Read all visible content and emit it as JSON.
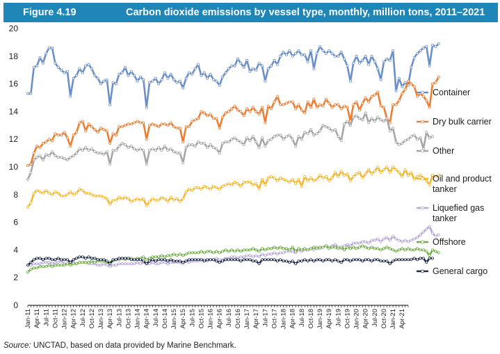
{
  "header": {
    "figure_label": "Figure 4.19",
    "title": "Carbon dioxide emissions by vessel type, monthly, million tons, 2011–2021"
  },
  "source": {
    "label": "Source:",
    "text": " UNCTAD, based on data provided by Marine Benchmark."
  },
  "chart_data": {
    "type": "line",
    "title": "Carbon dioxide emissions by vessel type, monthly, million tons, 2011–2021",
    "xlabel": "",
    "ylabel": "",
    "ylim": [
      0,
      20
    ],
    "yticks": [
      0,
      2,
      4,
      6,
      8,
      10,
      12,
      14,
      16,
      18,
      20
    ],
    "grid": false,
    "legend_position": "right",
    "x_start": "Jan-11",
    "x_count": 126,
    "x_tick_labels": [
      "Jan-11",
      "Apr-11",
      "Jul-11",
      "Oct-11",
      "Jan-12",
      "Apr-12",
      "Jul-12",
      "Oct-12",
      "Jan-13",
      "Apr-13",
      "Jul-13",
      "Oct-13",
      "Jan-14",
      "Apr-14",
      "Jul-14",
      "Oct-14",
      "Jan-15",
      "Apr-15",
      "Jul-15",
      "Oct-15",
      "Jan-16",
      "Apr-16",
      "Jul-16",
      "Oct-16",
      "Jan-17",
      "Apr-17",
      "Jul-17",
      "Oct-17",
      "Jan-18",
      "Apr-18",
      "Jul-18",
      "Oct-18",
      "Jan-19",
      "Apr-19",
      "Jul-19",
      "Oct-19",
      "Jan-20",
      "Apr-20",
      "Jul-20",
      "Oct-20",
      "Jan-21",
      "Apr-21"
    ],
    "series": [
      {
        "name": "Container",
        "color": "#6b8fc9",
        "values": [
          15.3,
          15.3,
          17.2,
          17.3,
          17.9,
          17.5,
          18.2,
          18.6,
          18.6,
          17.5,
          17.2,
          17.0,
          16.8,
          16.9,
          15.1,
          16.4,
          16.6,
          17.1,
          16.8,
          17.3,
          17.4,
          17.1,
          16.6,
          16.4,
          16.0,
          16.2,
          16.3,
          14.5,
          16.1,
          16.0,
          16.7,
          16.8,
          17.2,
          16.6,
          16.9,
          16.6,
          16.2,
          16.5,
          16.3,
          14.3,
          16.1,
          16.2,
          16.4,
          16.0,
          16.3,
          16.8,
          16.4,
          16.7,
          16.3,
          16.1,
          16.2,
          15.7,
          16.4,
          16.8,
          16.7,
          17.1,
          17.4,
          16.6,
          16.8,
          16.4,
          16.7,
          16.3,
          16.2,
          15.9,
          16.5,
          16.8,
          17.1,
          17.3,
          17.3,
          17.8,
          17.5,
          17.2,
          17.7,
          16.9,
          17.1,
          17.0,
          17.5,
          17.3,
          16.2,
          17.1,
          17.3,
          17.7,
          17.4,
          18.0,
          18.3,
          18.1,
          18.4,
          18.0,
          18.2,
          18.4,
          18.1,
          18.1,
          17.6,
          18.4,
          17.1,
          18.2,
          18.7,
          18.4,
          18.2,
          18.4,
          18.2,
          18.0,
          18.0,
          18.3,
          17.8,
          17.3,
          16.2,
          17.5,
          18.0,
          17.5,
          17.7,
          18.0,
          17.4,
          18.0,
          17.6,
          17.1,
          16.3,
          17.6,
          17.8,
          17.7,
          18.4,
          15.5,
          16.4,
          15.8,
          16.1,
          15.9,
          17.2,
          17.9,
          18.2,
          18.4,
          18.6,
          18.7,
          17.3,
          18.8,
          18.7,
          18.9
        ]
      },
      {
        "name": "Dry bulk carrier",
        "color": "#ed7d31",
        "values": [
          10.1,
          10.2,
          11.0,
          11.5,
          11.4,
          11.7,
          11.8,
          12.0,
          11.9,
          12.4,
          12.3,
          12.3,
          12.5,
          12.1,
          11.5,
          12.3,
          12.5,
          13.2,
          13.3,
          12.6,
          13.1,
          12.9,
          12.7,
          12.5,
          12.8,
          12.7,
          12.6,
          11.7,
          12.4,
          12.3,
          12.9,
          12.9,
          13.0,
          13.1,
          13.1,
          13.2,
          13.3,
          13.2,
          13.2,
          12.0,
          13.0,
          13.1,
          13.0,
          12.9,
          13.1,
          13.1,
          13.0,
          13.2,
          12.9,
          12.8,
          12.8,
          11.8,
          12.9,
          12.9,
          13.3,
          13.4,
          13.5,
          14.0,
          13.9,
          13.7,
          13.8,
          13.5,
          13.5,
          12.8,
          13.6,
          13.9,
          14.0,
          14.2,
          14.4,
          14.1,
          14.0,
          13.7,
          14.2,
          14.0,
          14.3,
          14.0,
          13.8,
          14.3,
          13.2,
          14.4,
          14.2,
          14.7,
          15.1,
          14.5,
          14.5,
          14.6,
          14.7,
          14.7,
          14.2,
          14.5,
          14.1,
          13.9,
          14.7,
          14.3,
          14.9,
          14.3,
          14.5,
          14.4,
          14.9,
          14.6,
          14.3,
          14.5,
          14.5,
          14.2,
          14.4,
          14.3,
          13.3,
          14.5,
          14.7,
          14.1,
          14.6,
          15.0,
          14.7,
          15.1,
          15.2,
          15.4,
          14.4,
          14.3,
          13.5,
          13.2,
          14.5,
          14.5,
          14.8,
          15.3,
          15.6,
          16.2,
          16.0,
          15.8,
          15.1,
          15.3,
          15.1,
          14.8,
          14.3,
          16.0,
          16.1,
          16.5
        ]
      },
      {
        "name": "Other",
        "color": "#a5a5a5",
        "values": [
          9.1,
          9.6,
          10.5,
          10.7,
          10.8,
          10.5,
          10.9,
          10.8,
          11.1,
          10.8,
          10.7,
          10.7,
          10.6,
          10.5,
          10.7,
          10.8,
          11.0,
          11.3,
          11.2,
          11.4,
          11.2,
          11.3,
          11.1,
          11.0,
          11.0,
          10.9,
          11.1,
          10.2,
          11.2,
          11.2,
          11.5,
          11.7,
          11.6,
          11.4,
          11.5,
          11.3,
          11.2,
          11.3,
          11.2,
          10.2,
          11.2,
          11.3,
          11.2,
          11.4,
          11.2,
          11.5,
          11.2,
          11.3,
          11.1,
          11.0,
          11.0,
          10.3,
          11.4,
          11.6,
          11.6,
          11.5,
          11.8,
          11.7,
          11.7,
          11.4,
          11.6,
          11.4,
          11.3,
          11.0,
          11.7,
          11.8,
          11.8,
          12.0,
          12.1,
          11.9,
          11.8,
          11.6,
          12.1,
          11.9,
          12.2,
          11.8,
          11.4,
          12.1,
          11.5,
          11.9,
          12.0,
          12.2,
          12.3,
          12.3,
          12.0,
          12.2,
          12.3,
          12.0,
          11.5,
          12.2,
          12.0,
          12.5,
          12.4,
          12.7,
          12.3,
          12.4,
          12.6,
          13.0,
          12.9,
          12.8,
          12.6,
          12.7,
          12.2,
          11.9,
          13.1,
          13.3,
          13.0,
          13.6,
          13.7,
          13.5,
          13.4,
          13.9,
          13.2,
          13.5,
          13.3,
          13.6,
          13.4,
          13.3,
          13.5,
          12.6,
          12.8,
          11.8,
          11.6,
          11.7,
          11.9,
          12.0,
          12.2,
          12.3,
          12.0,
          12.1,
          11.3,
          12.5,
          12.1,
          12.2
        ]
      },
      {
        "name": "Oil and product tanker",
        "color": "#f5b82e",
        "values": [
          7.1,
          7.4,
          8.1,
          8.3,
          8.2,
          8.1,
          8.3,
          8.1,
          8.0,
          8.2,
          8.1,
          7.9,
          7.9,
          8.0,
          8.2,
          8.0,
          8.1,
          8.4,
          8.3,
          8.1,
          8.1,
          8.0,
          7.9,
          7.9,
          7.9,
          7.8,
          7.7,
          7.3,
          7.6,
          7.6,
          7.8,
          7.7,
          7.8,
          7.7,
          7.5,
          7.6,
          7.7,
          7.6,
          7.7,
          7.2,
          7.5,
          7.7,
          7.6,
          7.6,
          7.8,
          7.7,
          7.5,
          7.8,
          7.6,
          7.7,
          7.5,
          7.7,
          8.2,
          8.4,
          8.3,
          8.5,
          8.5,
          8.4,
          8.6,
          8.5,
          8.4,
          8.6,
          8.5,
          8.4,
          8.6,
          8.7,
          8.8,
          8.7,
          8.9,
          8.8,
          8.6,
          8.9,
          8.9,
          8.9,
          8.7,
          8.8,
          8.4,
          9.1,
          8.7,
          9.2,
          9.3,
          9.2,
          9.0,
          9.2,
          9.1,
          9.0,
          8.9,
          9.1,
          8.8,
          9.1,
          8.6,
          9.3,
          9.0,
          9.2,
          9.0,
          9.1,
          9.4,
          9.2,
          9.3,
          9.0,
          9.2,
          9.6,
          9.3,
          9.7,
          9.4,
          9.5,
          9.0,
          9.3,
          9.5,
          9.6,
          9.2,
          9.5,
          9.8,
          9.5,
          9.7,
          10.0,
          9.6,
          9.8,
          10.0,
          9.6,
          10.0,
          9.8,
          9.6,
          9.3,
          9.8,
          9.4,
          9.6,
          9.1,
          9.3,
          9.4,
          9.2,
          9.0,
          8.7,
          9.4,
          9.3,
          9.4
        ]
      },
      {
        "name": "Liquefied gas tanker",
        "color": "#b7a7d9",
        "values": [
          2.9,
          2.9,
          3.0,
          3.0,
          3.0,
          3.1,
          3.1,
          3.1,
          3.0,
          3.1,
          3.1,
          3.2,
          3.0,
          3.0,
          3.1,
          3.1,
          3.0,
          3.1,
          3.1,
          3.1,
          3.0,
          3.0,
          3.0,
          2.9,
          2.9,
          3.0,
          2.9,
          2.8,
          2.9,
          2.9,
          3.0,
          3.0,
          3.0,
          3.0,
          3.0,
          3.0,
          3.1,
          3.0,
          3.1,
          3.0,
          3.0,
          3.1,
          3.0,
          3.0,
          3.1,
          3.1,
          3.0,
          3.1,
          3.1,
          3.1,
          3.1,
          3.0,
          3.2,
          3.1,
          3.2,
          3.2,
          3.2,
          3.3,
          3.3,
          3.2,
          3.3,
          3.3,
          3.4,
          3.3,
          3.3,
          3.4,
          3.4,
          3.5,
          3.5,
          3.4,
          3.5,
          3.5,
          3.6,
          3.6,
          3.5,
          3.6,
          3.5,
          3.7,
          3.6,
          3.7,
          3.7,
          3.8,
          3.7,
          3.8,
          3.8,
          3.9,
          3.9,
          3.9,
          3.8,
          4.0,
          3.9,
          4.0,
          4.0,
          4.1,
          4.0,
          4.2,
          4.1,
          4.2,
          4.3,
          4.2,
          4.3,
          4.4,
          4.2,
          4.1,
          4.3,
          4.4,
          4.3,
          4.5,
          4.5,
          4.5,
          4.6,
          4.6,
          4.5,
          4.7,
          4.7,
          4.8,
          4.6,
          4.8,
          4.9,
          4.7,
          5.0,
          4.8,
          4.7,
          4.6,
          4.7,
          4.6,
          4.7,
          4.8,
          4.9,
          5.1,
          5.3,
          5.5,
          5.7,
          5.2,
          5.0,
          5.1
        ]
      },
      {
        "name": "Offshore",
        "color": "#70ad47",
        "values": [
          2.4,
          2.6,
          2.7,
          2.7,
          2.8,
          2.8,
          2.8,
          2.9,
          2.8,
          2.9,
          2.9,
          2.9,
          2.9,
          3.0,
          2.9,
          3.0,
          3.0,
          3.1,
          3.1,
          3.1,
          3.1,
          3.2,
          3.1,
          3.2,
          3.2,
          3.2,
          3.1,
          3.1,
          3.2,
          3.3,
          3.3,
          3.4,
          3.3,
          3.4,
          3.4,
          3.3,
          3.4,
          3.4,
          3.5,
          3.3,
          3.4,
          3.5,
          3.5,
          3.5,
          3.6,
          3.5,
          3.6,
          3.6,
          3.7,
          3.6,
          3.7,
          3.6,
          3.7,
          3.8,
          3.8,
          3.8,
          3.8,
          3.9,
          3.8,
          3.9,
          3.9,
          3.8,
          3.9,
          3.8,
          3.9,
          4.0,
          3.9,
          4.0,
          3.9,
          4.0,
          3.9,
          4.0,
          4.0,
          4.0,
          4.1,
          4.0,
          3.9,
          4.1,
          4.0,
          4.1,
          4.1,
          4.2,
          4.1,
          4.2,
          4.1,
          4.1,
          4.0,
          4.2,
          3.9,
          4.1,
          4.0,
          4.1,
          4.0,
          4.1,
          4.2,
          4.1,
          4.2,
          4.2,
          4.3,
          4.1,
          4.2,
          4.2,
          4.1,
          4.2,
          4.0,
          4.2,
          4.1,
          4.2,
          4.1,
          4.2,
          4.3,
          4.2,
          4.1,
          4.2,
          4.1,
          4.1,
          4.0,
          4.1,
          4.2,
          4.1,
          4.0,
          3.9,
          4.0,
          4.1,
          4.0,
          4.1,
          4.0,
          4.0,
          4.1,
          4.0,
          4.0,
          3.9,
          3.6,
          4.0,
          3.9,
          3.8
        ]
      },
      {
        "name": "General cargo",
        "color": "#1b2a47",
        "values": [
          2.9,
          3.1,
          3.3,
          3.4,
          3.4,
          3.3,
          3.4,
          3.4,
          3.3,
          3.3,
          3.4,
          3.3,
          3.3,
          3.3,
          3.1,
          3.3,
          3.4,
          3.5,
          3.5,
          3.4,
          3.5,
          3.4,
          3.4,
          3.3,
          3.3,
          3.3,
          3.2,
          3.0,
          3.3,
          3.3,
          3.4,
          3.4,
          3.4,
          3.4,
          3.3,
          3.3,
          3.3,
          3.3,
          3.2,
          3.0,
          3.2,
          3.3,
          3.2,
          3.3,
          3.3,
          3.3,
          3.2,
          3.3,
          3.2,
          3.2,
          3.2,
          3.1,
          3.2,
          3.3,
          3.3,
          3.3,
          3.3,
          3.3,
          3.2,
          3.3,
          3.3,
          3.3,
          3.2,
          3.1,
          3.2,
          3.3,
          3.3,
          3.3,
          3.3,
          3.3,
          3.2,
          3.3,
          3.3,
          3.3,
          3.2,
          3.2,
          3.0,
          3.3,
          3.3,
          3.3,
          3.3,
          3.3,
          3.2,
          3.3,
          3.2,
          3.2,
          3.1,
          3.2,
          3.0,
          3.2,
          3.2,
          3.3,
          3.2,
          3.3,
          3.2,
          3.3,
          3.3,
          3.2,
          3.3,
          3.3,
          3.2,
          3.3,
          3.2,
          3.1,
          3.3,
          3.3,
          3.2,
          3.3,
          3.3,
          3.3,
          3.2,
          3.3,
          3.3,
          3.2,
          3.3,
          3.3,
          3.2,
          3.2,
          3.2,
          3.0,
          3.2,
          3.3,
          3.3,
          3.3,
          3.3,
          3.3,
          3.3,
          3.4,
          3.3,
          3.4,
          3.4,
          3.1,
          3.4,
          3.4
        ]
      }
    ],
    "legend": [
      {
        "lines": [
          "Container"
        ],
        "series": 0
      },
      {
        "lines": [
          "Dry bulk carrier"
        ],
        "series": 1
      },
      {
        "lines": [
          "Other"
        ],
        "series": 2
      },
      {
        "lines": [
          "Oil and product",
          "tanker"
        ],
        "series": 3
      },
      {
        "lines": [
          "Liquefied gas",
          "tanker"
        ],
        "series": 4
      },
      {
        "lines": [
          "Offshore"
        ],
        "series": 5
      },
      {
        "lines": [
          "General cargo"
        ],
        "series": 6
      }
    ]
  }
}
